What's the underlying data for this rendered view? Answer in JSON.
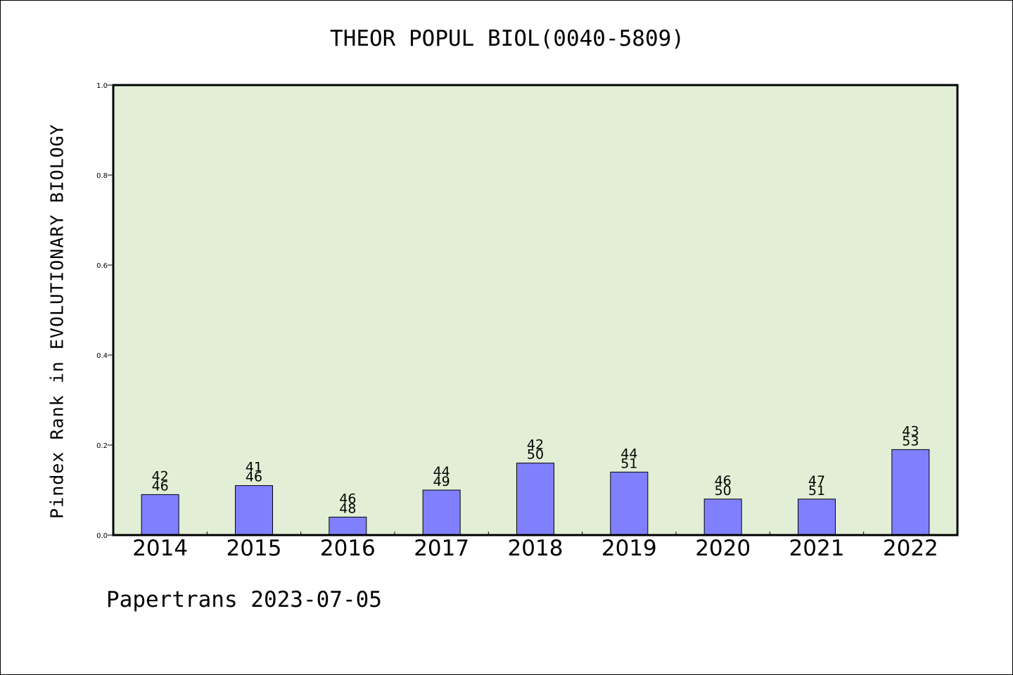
{
  "chart_data": {
    "type": "bar",
    "title": "THEOR POPUL BIOL(0040-5809)",
    "xlabel": "",
    "ylabel": "Pindex Rank in EVOLUTIONARY BIOLOGY",
    "ylim": [
      0,
      1.0
    ],
    "yticks": [
      "0.0",
      "0.2",
      "0.4",
      "0.6",
      "0.8",
      "1.0"
    ],
    "categories": [
      "2014",
      "2015",
      "2016",
      "2017",
      "2018",
      "2019",
      "2020",
      "2021",
      "2022"
    ],
    "values": [
      0.09,
      0.11,
      0.04,
      0.1,
      0.16,
      0.14,
      0.08,
      0.08,
      0.19
    ],
    "labels_top": [
      "42",
      "41",
      "46",
      "44",
      "42",
      "44",
      "46",
      "47",
      "43"
    ],
    "labels_bottom": [
      "46",
      "46",
      "48",
      "49",
      "50",
      "51",
      "50",
      "51",
      "53"
    ],
    "grid": false,
    "legend": "none",
    "colors": {
      "plot_background": "#e2efd6",
      "bar_fill": "#8080ff",
      "bar_stroke": "#000000",
      "axis": "#000000"
    }
  },
  "footer": {
    "note": "Papertrans 2023-07-05"
  }
}
